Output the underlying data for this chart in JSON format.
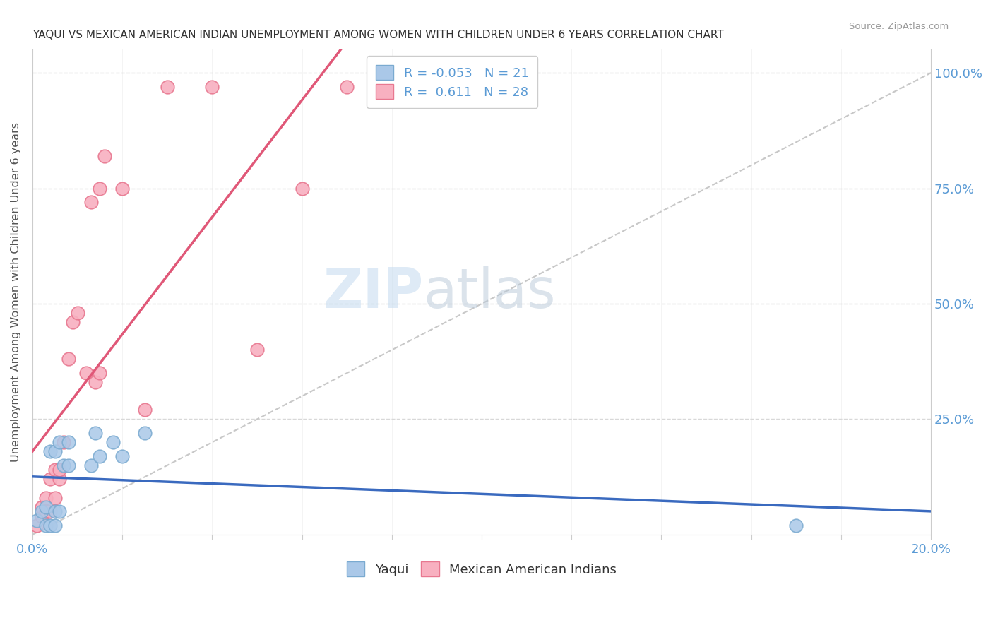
{
  "title": "YAQUI VS MEXICAN AMERICAN INDIAN UNEMPLOYMENT AMONG WOMEN WITH CHILDREN UNDER 6 YEARS CORRELATION CHART",
  "source": "Source: ZipAtlas.com",
  "ylabel": "Unemployment Among Women with Children Under 6 years",
  "background_color": "#ffffff",
  "watermark_zip": "ZIP",
  "watermark_atlas": "atlas",
  "legend_entries": [
    {
      "label": "Yaqui",
      "color": "#a8c4e0"
    },
    {
      "label": "Mexican American Indians",
      "color": "#f4a0b0"
    }
  ],
  "yaqui_scatter_x": [
    0.001,
    0.002,
    0.003,
    0.003,
    0.004,
    0.004,
    0.005,
    0.005,
    0.005,
    0.006,
    0.006,
    0.007,
    0.008,
    0.008,
    0.013,
    0.014,
    0.015,
    0.018,
    0.02,
    0.025,
    0.17
  ],
  "yaqui_scatter_y": [
    0.03,
    0.05,
    0.02,
    0.06,
    0.18,
    0.02,
    0.18,
    0.05,
    0.02,
    0.2,
    0.05,
    0.15,
    0.15,
    0.2,
    0.15,
    0.22,
    0.17,
    0.2,
    0.17,
    0.22,
    0.02
  ],
  "mexican_scatter_x": [
    0.001,
    0.002,
    0.002,
    0.003,
    0.003,
    0.004,
    0.004,
    0.005,
    0.005,
    0.006,
    0.006,
    0.007,
    0.008,
    0.009,
    0.01,
    0.012,
    0.013,
    0.014,
    0.015,
    0.015,
    0.016,
    0.02,
    0.025,
    0.03,
    0.04,
    0.05,
    0.06,
    0.07
  ],
  "mexican_scatter_y": [
    0.02,
    0.04,
    0.06,
    0.05,
    0.08,
    0.05,
    0.12,
    0.08,
    0.14,
    0.12,
    0.14,
    0.2,
    0.38,
    0.46,
    0.48,
    0.35,
    0.72,
    0.33,
    0.35,
    0.75,
    0.82,
    0.75,
    0.27,
    0.97,
    0.97,
    0.4,
    0.75,
    0.97
  ],
  "yaqui_line_color": "#3a6abf",
  "mexican_line_color": "#e05878",
  "diagonal_color": "#c8c8c8",
  "scatter_yaqui_color": "#aac8e8",
  "scatter_mexican_color": "#f8b0c0",
  "scatter_yaqui_edge": "#7aaad0",
  "scatter_mexican_edge": "#e87890",
  "scatter_size": 180,
  "xlim": [
    0.0,
    0.2
  ],
  "ylim": [
    0.0,
    1.05
  ],
  "grid_color": "#d8d8d8",
  "title_color": "#333333",
  "axis_label_color": "#5b9bd5",
  "yaqui_R": -0.053,
  "yaqui_N": 21,
  "mexican_R": 0.611,
  "mexican_N": 28
}
